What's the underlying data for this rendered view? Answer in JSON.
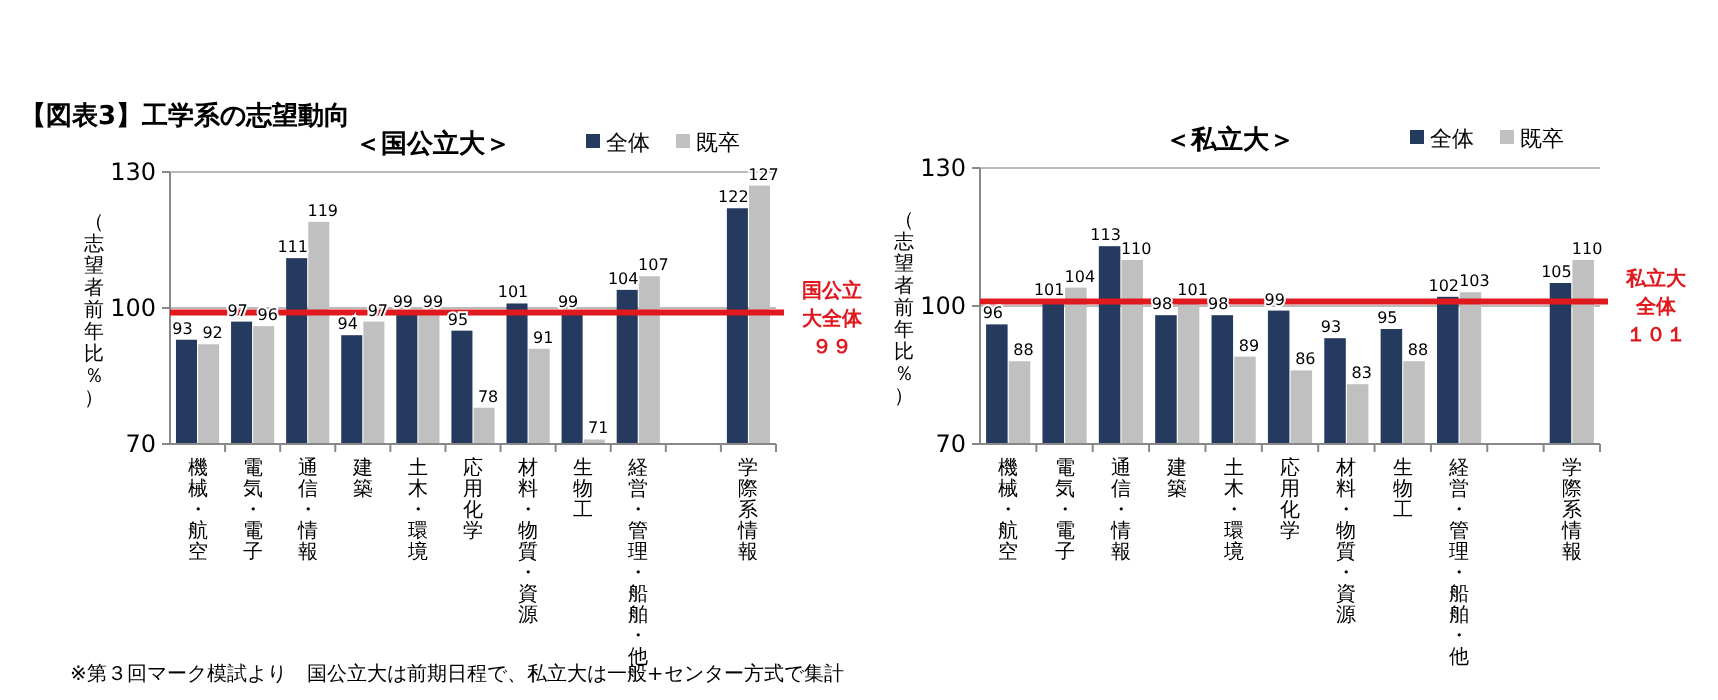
{
  "chart_data": [
    {
      "type": "bar",
      "title": "【図表3】工学系の志望動向",
      "subtitle": "＜国公立大＞",
      "ylabel": "（志望者前年比％）",
      "categories": [
        "機械・航空",
        "電気・電子",
        "通信・情報",
        "建築",
        "土木・環境",
        "応用化学",
        "材料・物質・資源",
        "生物工",
        "経営・管理・船舶・他",
        null,
        "学際系情報"
      ],
      "series": [
        {
          "name": "全体",
          "color": "#243a5e",
          "values": [
            93,
            97,
            111,
            94,
            99,
            95,
            101,
            99,
            104,
            null,
            122
          ]
        },
        {
          "name": "既卒",
          "color": "#c0c0c0",
          "values": [
            92,
            96,
            119,
            97,
            99,
            78,
            91,
            71,
            107,
            null,
            127
          ]
        }
      ],
      "ylim": [
        70,
        130
      ],
      "yticks": [
        70,
        100,
        130
      ],
      "grid": "y",
      "legend": "top right",
      "data_labels": true,
      "ref_lines": [
        {
          "axis": "y",
          "value": 99,
          "label": "国公立大全体９９",
          "color": "#e0191f"
        }
      ],
      "annotations": [
        "※第３回マーク模試より　国公立大は前期日程で、私立大は一般+センター方式で集計"
      ]
    },
    {
      "type": "bar",
      "title": "＜私立大＞",
      "ylabel": "（志望者前年比％）",
      "categories": [
        "機械・航空",
        "電気・電子",
        "通信・情報",
        "建築",
        "土木・環境",
        "応用化学",
        "材料・物質・資源",
        "生物工",
        "経営・管理・船舶・他",
        null,
        "学際系情報"
      ],
      "series": [
        {
          "name": "全体",
          "color": "#243a5e",
          "values": [
            96,
            101,
            113,
            98,
            98,
            99,
            93,
            95,
            102,
            null,
            105
          ]
        },
        {
          "name": "既卒",
          "color": "#c0c0c0",
          "values": [
            88,
            104,
            110,
            101,
            89,
            86,
            83,
            88,
            103,
            null,
            110
          ]
        }
      ],
      "ylim": [
        70,
        130
      ],
      "yticks": [
        70,
        100,
        130
      ],
      "grid": "y",
      "legend": "top right",
      "data_labels": true,
      "ref_lines": [
        {
          "axis": "y",
          "value": 101,
          "label": "私立大全体１０１",
          "color": "#e0191f"
        }
      ]
    }
  ]
}
